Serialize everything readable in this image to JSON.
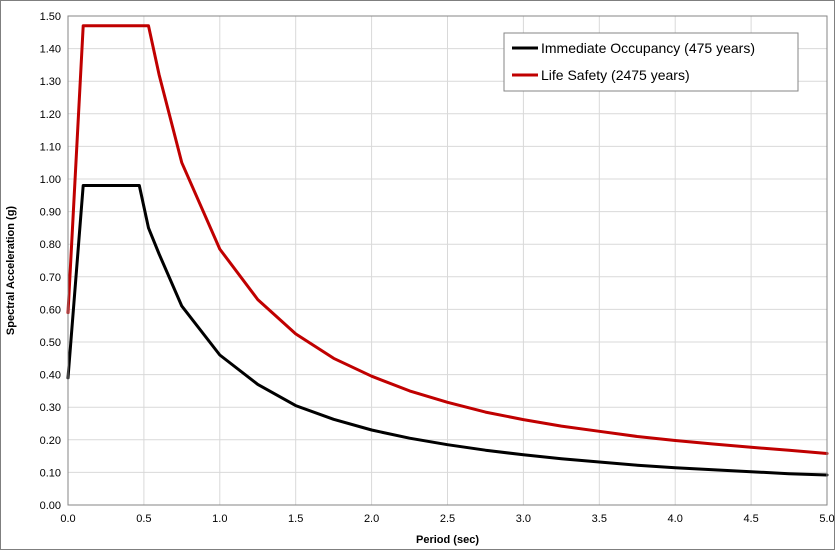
{
  "chart_data": {
    "type": "line",
    "title": "",
    "xlabel": "Period (sec)",
    "ylabel": "Spectral Acceleration (g)",
    "xlim": [
      0.0,
      5.0
    ],
    "ylim": [
      0.0,
      1.5
    ],
    "xticks": [
      "0.0",
      "0.5",
      "1.0",
      "1.5",
      "2.0",
      "2.5",
      "3.0",
      "3.5",
      "4.0",
      "4.5",
      "5.0"
    ],
    "yticks": [
      "0.00",
      "0.10",
      "0.20",
      "0.30",
      "0.40",
      "0.50",
      "0.60",
      "0.70",
      "0.80",
      "0.90",
      "1.00",
      "1.10",
      "1.20",
      "1.30",
      "1.40",
      "1.50"
    ],
    "grid": true,
    "legend_position": "top-right",
    "series": [
      {
        "name": "Immediate Occupancy (475 years)",
        "color": "#000000",
        "x": [
          0.0,
          0.1,
          0.47,
          0.53,
          0.6,
          0.75,
          1.0,
          1.25,
          1.5,
          1.75,
          2.0,
          2.25,
          2.5,
          2.75,
          3.0,
          3.25,
          3.5,
          3.75,
          4.0,
          4.25,
          4.5,
          4.75,
          5.0
        ],
        "y": [
          0.39,
          0.98,
          0.98,
          0.85,
          0.77,
          0.61,
          0.46,
          0.37,
          0.305,
          0.263,
          0.23,
          0.205,
          0.185,
          0.168,
          0.154,
          0.142,
          0.132,
          0.122,
          0.114,
          0.108,
          0.102,
          0.096,
          0.092
        ]
      },
      {
        "name": "Life Safety (2475 years)",
        "color": "#c00000",
        "x": [
          0.0,
          0.1,
          0.53,
          0.6,
          0.75,
          1.0,
          1.25,
          1.5,
          1.75,
          2.0,
          2.25,
          2.5,
          2.75,
          3.0,
          3.25,
          3.5,
          3.75,
          4.0,
          4.25,
          4.5,
          4.75,
          5.0
        ],
        "y": [
          0.59,
          1.47,
          1.47,
          1.32,
          1.05,
          0.785,
          0.63,
          0.525,
          0.45,
          0.395,
          0.35,
          0.315,
          0.285,
          0.262,
          0.242,
          0.226,
          0.21,
          0.198,
          0.187,
          0.177,
          0.168,
          0.158
        ]
      }
    ]
  }
}
